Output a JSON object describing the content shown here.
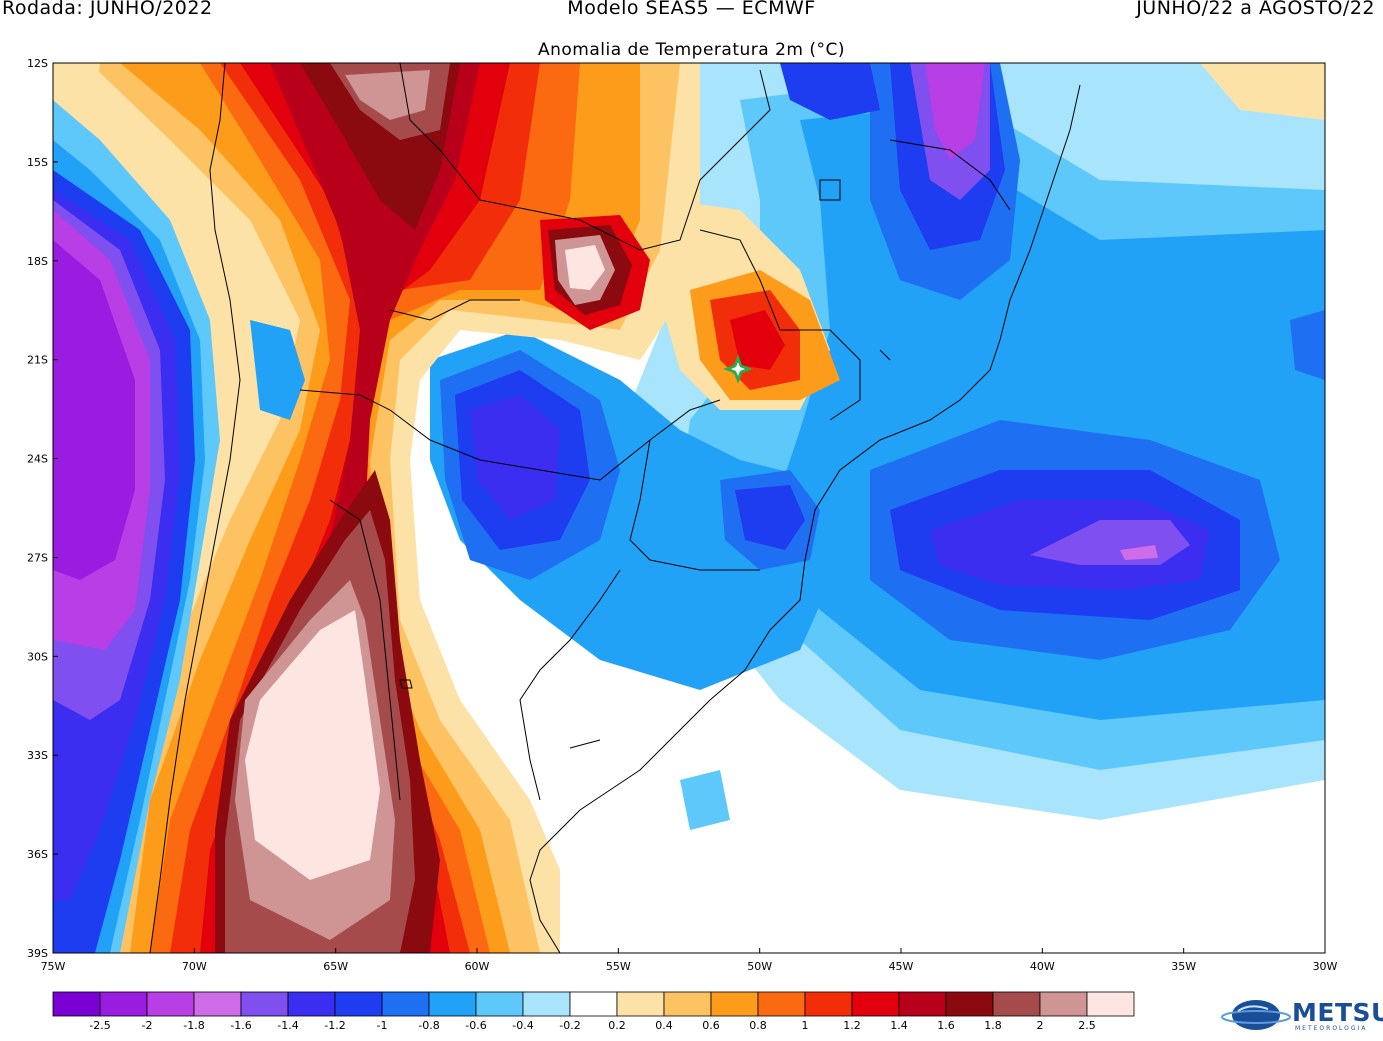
{
  "header": {
    "left": "Rodada:   JUNHO/2022",
    "center": "Modelo SEAS5 — ECMWF",
    "right": "JUNHO/22 a AGOSTO/22"
  },
  "map_title": "Anomalia de Temperatura 2m (°C)",
  "axes": {
    "lat_labels": [
      "12S",
      "15S",
      "18S",
      "21S",
      "24S",
      "27S",
      "30S",
      "33S",
      "36S",
      "39S"
    ],
    "lon_labels": [
      "75W",
      "70W",
      "65W",
      "60W",
      "55W",
      "50W",
      "45W",
      "40W",
      "35W",
      "30W"
    ]
  },
  "colorbar": {
    "colors": [
      "#7a00d6",
      "#9a1ce0",
      "#b83ee6",
      "#cf6de8",
      "#7f4ff0",
      "#3b2ef0",
      "#1e3cf0",
      "#1f6ff2",
      "#22a2f6",
      "#5fc8fa",
      "#a8e4fc",
      "#ffffff",
      "#fde2a8",
      "#fdc262",
      "#fd9b1a",
      "#fb6a10",
      "#f22e0a",
      "#e1000c",
      "#b8001b",
      "#8a0a10",
      "#a64b4b",
      "#cf9494",
      "#fde6e2"
    ],
    "labels": [
      "-2.5",
      "-2",
      "-1.8",
      "-1.6",
      "-1.4",
      "-1.2",
      "-1",
      "-0.8",
      "-0.6",
      "-0.4",
      "-0.2",
      "0.2",
      "0.4",
      "0.6",
      "0.8",
      "1",
      "1.2",
      "1.4",
      "1.6",
      "1.8",
      "2",
      "2.5"
    ]
  },
  "logo": {
    "name": "METSUL",
    "sub": "METEOROLOGIA"
  },
  "marker": {
    "name": "green-star-marker",
    "color": "#22b14c"
  }
}
